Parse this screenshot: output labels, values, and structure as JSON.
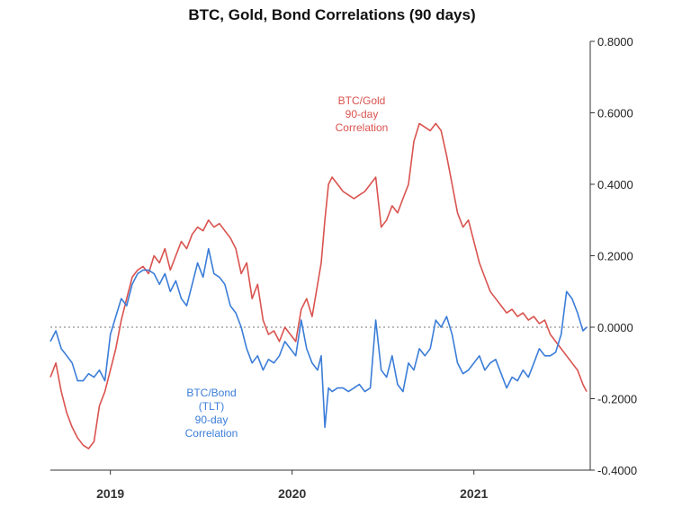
{
  "chart_data": {
    "type": "line",
    "title": "BTC, Gold, Bond Correlations (90 days)",
    "xlabel": "",
    "ylabel": "",
    "y_axis_side": "right",
    "ylim": [
      -0.4,
      0.8
    ],
    "y_ticks": [
      -0.4,
      -0.2,
      0.0,
      0.2,
      0.4,
      0.6,
      0.8
    ],
    "y_tick_labels": [
      "-0.4000",
      "-0.2000",
      "0.0000",
      "0.2000",
      "0.4000",
      "0.6000",
      "0.8000"
    ],
    "xlim": [
      2018.67,
      2021.64
    ],
    "x_ticks": [
      2019,
      2020,
      2021
    ],
    "x_tick_labels": [
      "2019",
      "2020",
      "2021"
    ],
    "zero_line": true,
    "grid": false,
    "series": [
      {
        "name": "BTC/Gold 90-day Correlation",
        "label_lines": [
          "BTC/Gold",
          "90-day",
          "Correlation"
        ],
        "color": "#d9534f",
        "x": [
          2018.67,
          2018.7,
          2018.73,
          2018.76,
          2018.79,
          2018.82,
          2018.85,
          2018.88,
          2018.91,
          2018.94,
          2018.97,
          2019.0,
          2019.03,
          2019.06,
          2019.09,
          2019.12,
          2019.15,
          2019.18,
          2019.21,
          2019.24,
          2019.27,
          2019.3,
          2019.33,
          2019.36,
          2019.39,
          2019.42,
          2019.45,
          2019.48,
          2019.51,
          2019.54,
          2019.57,
          2019.6,
          2019.63,
          2019.66,
          2019.69,
          2019.72,
          2019.75,
          2019.78,
          2019.81,
          2019.84,
          2019.87,
          2019.9,
          2019.93,
          2019.96,
          2019.99,
          2020.02,
          2020.05,
          2020.08,
          2020.11,
          2020.14,
          2020.16,
          2020.18,
          2020.2,
          2020.22,
          2020.25,
          2020.28,
          2020.31,
          2020.34,
          2020.37,
          2020.4,
          2020.43,
          2020.46,
          2020.49,
          2020.52,
          2020.55,
          2020.58,
          2020.61,
          2020.64,
          2020.67,
          2020.7,
          2020.73,
          2020.76,
          2020.79,
          2020.82,
          2020.85,
          2020.88,
          2020.91,
          2020.94,
          2020.97,
          2021.0,
          2021.03,
          2021.06,
          2021.09,
          2021.12,
          2021.15,
          2021.18,
          2021.21,
          2021.24,
          2021.27,
          2021.3,
          2021.33,
          2021.36,
          2021.39,
          2021.42,
          2021.45,
          2021.48,
          2021.51,
          2021.54,
          2021.57,
          2021.6,
          2021.62
        ],
        "values": [
          -0.14,
          -0.1,
          -0.18,
          -0.24,
          -0.28,
          -0.31,
          -0.33,
          -0.34,
          -0.32,
          -0.22,
          -0.18,
          -0.12,
          -0.06,
          0.02,
          0.08,
          0.14,
          0.16,
          0.17,
          0.15,
          0.2,
          0.18,
          0.22,
          0.16,
          0.2,
          0.24,
          0.22,
          0.26,
          0.28,
          0.27,
          0.3,
          0.28,
          0.29,
          0.27,
          0.25,
          0.22,
          0.15,
          0.18,
          0.08,
          0.12,
          0.02,
          -0.02,
          -0.01,
          -0.04,
          0.0,
          -0.02,
          -0.04,
          0.05,
          0.08,
          0.03,
          0.12,
          0.18,
          0.3,
          0.4,
          0.42,
          0.4,
          0.38,
          0.37,
          0.36,
          0.37,
          0.38,
          0.4,
          0.42,
          0.28,
          0.3,
          0.34,
          0.32,
          0.36,
          0.4,
          0.52,
          0.57,
          0.56,
          0.55,
          0.57,
          0.55,
          0.48,
          0.4,
          0.32,
          0.28,
          0.3,
          0.24,
          0.18,
          0.14,
          0.1,
          0.08,
          0.06,
          0.04,
          0.05,
          0.03,
          0.04,
          0.02,
          0.03,
          0.01,
          0.02,
          -0.02,
          -0.04,
          -0.06,
          -0.08,
          -0.1,
          -0.12,
          -0.16,
          -0.18
        ]
      },
      {
        "name": "BTC/Bond (TLT) 90-day Correlation",
        "label_lines": [
          "BTC/Bond",
          "(TLT)",
          "90-day",
          "Correlation"
        ],
        "color": "#3b7dd8",
        "x": [
          2018.67,
          2018.7,
          2018.73,
          2018.76,
          2018.79,
          2018.82,
          2018.85,
          2018.88,
          2018.91,
          2018.94,
          2018.97,
          2019.0,
          2019.03,
          2019.06,
          2019.09,
          2019.12,
          2019.15,
          2019.18,
          2019.21,
          2019.24,
          2019.27,
          2019.3,
          2019.33,
          2019.36,
          2019.39,
          2019.42,
          2019.45,
          2019.48,
          2019.51,
          2019.54,
          2019.57,
          2019.6,
          2019.63,
          2019.66,
          2019.69,
          2019.72,
          2019.75,
          2019.78,
          2019.81,
          2019.84,
          2019.87,
          2019.9,
          2019.93,
          2019.96,
          2019.99,
          2020.02,
          2020.05,
          2020.08,
          2020.11,
          2020.14,
          2020.16,
          2020.18,
          2020.2,
          2020.22,
          2020.25,
          2020.28,
          2020.31,
          2020.34,
          2020.37,
          2020.4,
          2020.43,
          2020.46,
          2020.49,
          2020.52,
          2020.55,
          2020.58,
          2020.61,
          2020.64,
          2020.67,
          2020.7,
          2020.73,
          2020.76,
          2020.79,
          2020.82,
          2020.85,
          2020.88,
          2020.91,
          2020.94,
          2020.97,
          2021.0,
          2021.03,
          2021.06,
          2021.09,
          2021.12,
          2021.15,
          2021.18,
          2021.21,
          2021.24,
          2021.27,
          2021.3,
          2021.33,
          2021.36,
          2021.39,
          2021.42,
          2021.45,
          2021.48,
          2021.51,
          2021.54,
          2021.57,
          2021.6,
          2021.62
        ],
        "values": [
          -0.04,
          -0.01,
          -0.06,
          -0.08,
          -0.1,
          -0.15,
          -0.15,
          -0.13,
          -0.14,
          -0.12,
          -0.15,
          -0.02,
          0.03,
          0.08,
          0.06,
          0.12,
          0.15,
          0.16,
          0.16,
          0.15,
          0.12,
          0.15,
          0.1,
          0.13,
          0.08,
          0.06,
          0.12,
          0.18,
          0.14,
          0.22,
          0.15,
          0.14,
          0.12,
          0.06,
          0.04,
          0.0,
          -0.06,
          -0.1,
          -0.08,
          -0.12,
          -0.09,
          -0.1,
          -0.08,
          -0.04,
          -0.06,
          -0.08,
          0.02,
          -0.06,
          -0.1,
          -0.12,
          -0.08,
          -0.28,
          -0.17,
          -0.18,
          -0.17,
          -0.17,
          -0.18,
          -0.17,
          -0.16,
          -0.18,
          -0.17,
          0.02,
          -0.12,
          -0.14,
          -0.08,
          -0.16,
          -0.18,
          -0.1,
          -0.12,
          -0.06,
          -0.08,
          -0.06,
          0.02,
          0.0,
          0.03,
          -0.02,
          -0.1,
          -0.13,
          -0.12,
          -0.1,
          -0.08,
          -0.12,
          -0.1,
          -0.09,
          -0.13,
          -0.17,
          -0.14,
          -0.15,
          -0.12,
          -0.14,
          -0.1,
          -0.06,
          -0.08,
          -0.08,
          -0.07,
          -0.02,
          0.1,
          0.08,
          0.04,
          -0.01,
          0.0
        ]
      }
    ]
  }
}
